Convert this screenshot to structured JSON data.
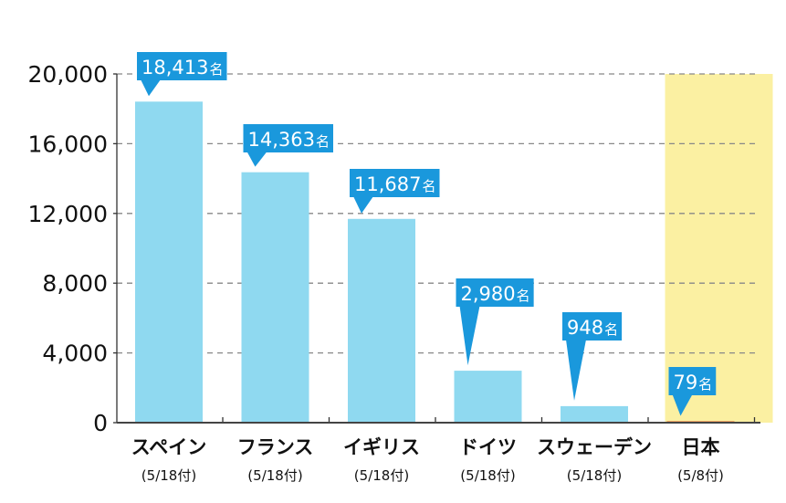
{
  "chart_data": {
    "type": "bar",
    "title": "",
    "xlabel": "",
    "ylabel": "",
    "ylim": [
      0,
      20000
    ],
    "yticks": [
      0,
      4000,
      8000,
      12000,
      16000,
      20000
    ],
    "ytick_labels": [
      "0",
      "4,000",
      "8,000",
      "12,000",
      "16,000",
      "20,000"
    ],
    "grid": "horizontal dashed",
    "categories": [
      "スペイン",
      "フランス",
      "イギリス",
      "ドイツ",
      "スウェーデン",
      "日本"
    ],
    "category_dates": [
      "(5/18付)",
      "(5/18付)",
      "(5/18付)",
      "(5/18付)",
      "(5/18付)",
      "(5/8付)"
    ],
    "values": [
      18413,
      14363,
      11687,
      2980,
      948,
      79
    ],
    "data_labels": [
      "18,413",
      "14,363",
      "11,687",
      "2,980",
      "948",
      "79"
    ],
    "unit": "名",
    "highlight_category": "日本",
    "colors": {
      "bar": "#8fd9f0",
      "highlight_bar": "#e0602a",
      "highlight_background": "#fbf0a2",
      "callout": "#1a98dc",
      "grid": "#888888"
    }
  }
}
